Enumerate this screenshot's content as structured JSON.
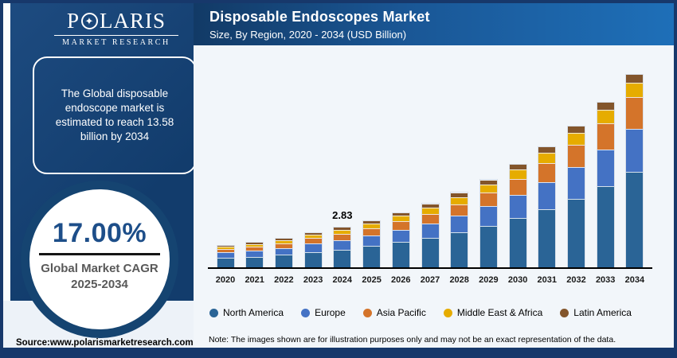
{
  "brand": {
    "logo_pre": "P",
    "logo_star": "✦",
    "logo_post": "LARIS",
    "logo_sub": "MARKET RESEARCH"
  },
  "header": {
    "title": "Disposable Endoscopes Market",
    "subtitle": "Size, By Region, 2020 - 2034 (USD Billion)"
  },
  "sidebar": {
    "info_text": "The Global disposable endoscope market is estimated to reach 13.58 billion by 2034",
    "cagr_value": "17.00%",
    "cagr_label_line1": "Global Market CAGR",
    "cagr_label_line2": "2025-2034"
  },
  "footer": {
    "source": "Source:www.polarismarketresearch.com",
    "note": "Note: The images shown are for illustration purposes only and may not be an exact representation of the data."
  },
  "colors": {
    "panel_navy": "#154471",
    "header_gradient_start": "#123A66",
    "header_gradient_end": "#1E6FB8",
    "frame_navy": "#17386B",
    "panel_light": "#F2F6FA",
    "cagr_value_blue": "#1D4E89",
    "cagr_label_gray": "#595959"
  },
  "chart_data": {
    "type": "bar",
    "stacked": true,
    "title": "Disposable Endoscopes Market Size, By Region, 2020 - 2034 (USD Billion)",
    "unit": "USD Billion",
    "ylim": [
      0,
      14
    ],
    "grid": false,
    "legend_position": "bottom",
    "categories": [
      "2020",
      "2021",
      "2022",
      "2023",
      "2024",
      "2025",
      "2026",
      "2027",
      "2028",
      "2029",
      "2030",
      "2031",
      "2032",
      "2033",
      "2034"
    ],
    "series": [
      {
        "name": "North America",
        "color": "#2A6496",
        "values": [
          0.7,
          0.81,
          0.93,
          1.11,
          1.31,
          1.54,
          1.82,
          2.15,
          2.53,
          2.98,
          3.51,
          4.13,
          4.87,
          5.74,
          6.83
        ]
      },
      {
        "name": "Europe",
        "color": "#4472C4",
        "values": [
          0.42,
          0.46,
          0.52,
          0.6,
          0.65,
          0.76,
          0.88,
          1.03,
          1.2,
          1.4,
          1.63,
          1.9,
          2.21,
          2.57,
          2.99
        ]
      },
      {
        "name": "Asia Pacific",
        "color": "#D4742A",
        "values": [
          0.24,
          0.27,
          0.31,
          0.37,
          0.43,
          0.5,
          0.59,
          0.69,
          0.81,
          0.95,
          1.12,
          1.32,
          1.55,
          1.83,
          2.21
        ]
      },
      {
        "name": "Middle East & Africa",
        "color": "#E6AC00",
        "values": [
          0.14,
          0.17,
          0.2,
          0.24,
          0.3,
          0.34,
          0.39,
          0.44,
          0.5,
          0.57,
          0.65,
          0.74,
          0.84,
          0.95,
          1.0
        ]
      },
      {
        "name": "Latin America",
        "color": "#83552B",
        "values": [
          0.08,
          0.09,
          0.1,
          0.12,
          0.14,
          0.17,
          0.19,
          0.22,
          0.26,
          0.3,
          0.35,
          0.4,
          0.46,
          0.53,
          0.55
        ]
      }
    ],
    "totals": [
      1.58,
      1.8,
      2.06,
      2.44,
      2.83,
      3.31,
      3.87,
      4.53,
      5.3,
      6.2,
      7.26,
      8.49,
      9.93,
      11.62,
      13.58
    ],
    "data_label": {
      "category": "2024",
      "text": "2.83"
    }
  }
}
